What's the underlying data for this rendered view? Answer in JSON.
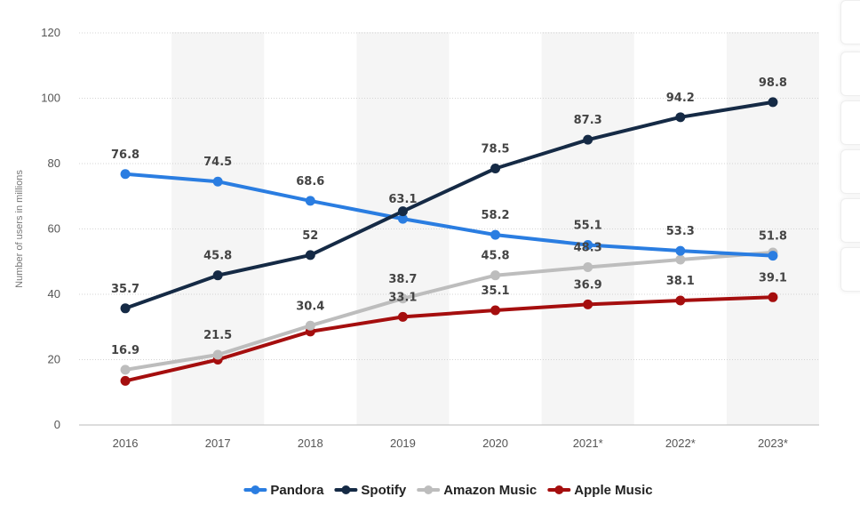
{
  "chart_data": {
    "type": "line",
    "categories": [
      "2016",
      "2017",
      "2018",
      "2019",
      "2020",
      "2021*",
      "2022*",
      "2023*"
    ],
    "ylabel": "Number of users in millions",
    "ylim": [
      0,
      120
    ],
    "yticks": [
      0,
      20,
      40,
      60,
      80,
      100,
      120
    ],
    "grid": true,
    "legend_position": "bottom",
    "series": [
      {
        "name": "Pandora",
        "color": "#2a7de1",
        "values": [
          76.8,
          74.5,
          68.6,
          63.1,
          58.2,
          55.1,
          53.3,
          51.8
        ]
      },
      {
        "name": "Spotify",
        "color": "#152a45",
        "values": [
          35.7,
          45.8,
          52,
          65.4,
          78.5,
          87.3,
          94.2,
          98.8
        ]
      },
      {
        "name": "Amazon Music",
        "color": "#bdbdbd",
        "values": [
          16.9,
          21.5,
          30.4,
          38.7,
          45.8,
          48.3,
          50.6,
          52.8
        ]
      },
      {
        "name": "Apple Music",
        "color": "#a50e0e",
        "values": [
          13.5,
          20,
          28.6,
          33.1,
          35.1,
          36.9,
          38.1,
          39.1
        ]
      }
    ],
    "data_labels": [
      {
        "series": 0,
        "index": 0,
        "text": "76.8"
      },
      {
        "series": 0,
        "index": 1,
        "text": "74.5"
      },
      {
        "series": 0,
        "index": 2,
        "text": "68.6"
      },
      {
        "series": 0,
        "index": 3,
        "text": "63.1"
      },
      {
        "series": 0,
        "index": 4,
        "text": "58.2"
      },
      {
        "series": 0,
        "index": 5,
        "text": "55.1"
      },
      {
        "series": 0,
        "index": 6,
        "text": "53.3"
      },
      {
        "series": 0,
        "index": 7,
        "text": "51.8"
      },
      {
        "series": 1,
        "index": 0,
        "text": "35.7"
      },
      {
        "series": 1,
        "index": 1,
        "text": "45.8"
      },
      {
        "series": 1,
        "index": 2,
        "text": "52"
      },
      {
        "series": 1,
        "index": 4,
        "text": "78.5"
      },
      {
        "series": 1,
        "index": 5,
        "text": "87.3"
      },
      {
        "series": 1,
        "index": 6,
        "text": "94.2"
      },
      {
        "series": 1,
        "index": 7,
        "text": "98.8"
      },
      {
        "series": 2,
        "index": 0,
        "text": "16.9"
      },
      {
        "series": 2,
        "index": 1,
        "text": "21.5"
      },
      {
        "series": 2,
        "index": 2,
        "text": "30.4"
      },
      {
        "series": 2,
        "index": 3,
        "text": "38.7"
      },
      {
        "series": 2,
        "index": 4,
        "text": "45.8"
      },
      {
        "series": 2,
        "index": 5,
        "text": "48.3"
      },
      {
        "series": 3,
        "index": 3,
        "text": "33.1"
      },
      {
        "series": 3,
        "index": 4,
        "text": "35.1"
      },
      {
        "series": 3,
        "index": 5,
        "text": "36.9"
      },
      {
        "series": 3,
        "index": 6,
        "text": "38.1"
      },
      {
        "series": 3,
        "index": 7,
        "text": "39.1"
      }
    ]
  }
}
